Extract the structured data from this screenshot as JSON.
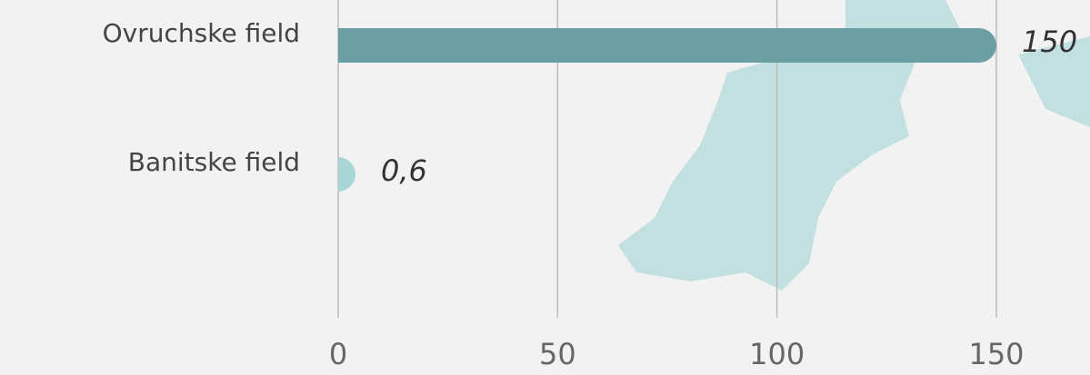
{
  "chart_data": {
    "type": "barh",
    "categories": [
      "Ovruchske field",
      "Banitske field"
    ],
    "series": [
      {
        "values": [
          150,
          0.6
        ],
        "value_labels": [
          "150",
          "0,6"
        ],
        "colors": [
          "#6a9fa3",
          "#a8d5d6"
        ]
      }
    ],
    "xlim": [
      0,
      150
    ],
    "xticks": [
      0,
      50,
      100,
      150
    ],
    "grid": true
  }
}
